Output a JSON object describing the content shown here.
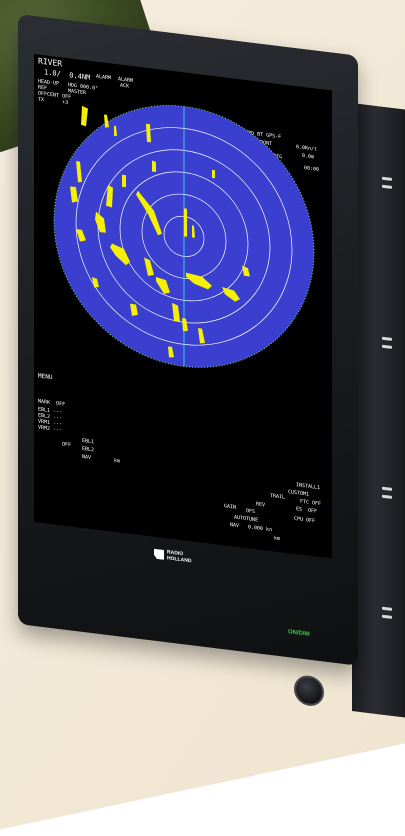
{
  "screen": {
    "top_left": {
      "mode": "RIVER",
      "range": "1.0/  0.4NM",
      "alarm1": "ALARM",
      "alarm2": "ALARM",
      "ack": "ACK",
      "heading_line": "HEAD-UP",
      "hdg": "HDG 000.0°",
      "reference": "REF",
      "master": "MASTER",
      "off_center": "OFFCENT OFF",
      "tx": "TX      +3"
    },
    "top_right": {
      "speed_label": "CAPT SPD BT GPS-F",
      "speed_value": "0.0Kn/t",
      "depth_label": "AUTO DPT FRONT",
      "depth_value": "0.0m",
      "cursor_label": "CURSOR TTG",
      "cursor_value": "00:00"
    },
    "left_mid": {
      "menu": "MENU"
    },
    "bottom_left": {
      "mark": "MARK  OFF",
      "lines": [
        "EBL1 ---",
        "EBL2 ---",
        "VRM1 ---",
        "VRM2 ---"
      ],
      "ebl1": "EBL1",
      "ebl2": "EBL2",
      "off": "OFF",
      "nav": "NAV",
      "unit": "km"
    },
    "bottom_right": {
      "install": "INSTALL1",
      "custom": "CUSTOM1",
      "trail": "TRAIL",
      "ftc": "FTC OFF",
      "rev": "REV",
      "es": "ES  OFF",
      "gain": "GAIN",
      "ofs": "OFS",
      "auto_tune": "AUTOTUNE",
      "cpu": "CPU OFF",
      "nav": "NAV",
      "speed": "0.000 kn",
      "km": "km"
    },
    "colors": {
      "radar_bg": "#3a3fd0",
      "echo": "#f4f000",
      "ring": "#ffffff",
      "heading_line": "#3ed6e8"
    }
  },
  "bezel": {
    "logo_text": "RADIO\nHOLLAND",
    "power_label": "ON/DIM"
  },
  "icons": {
    "power_knob": "rotary-knob-icon",
    "logo": "radio-holland-logo-icon"
  }
}
